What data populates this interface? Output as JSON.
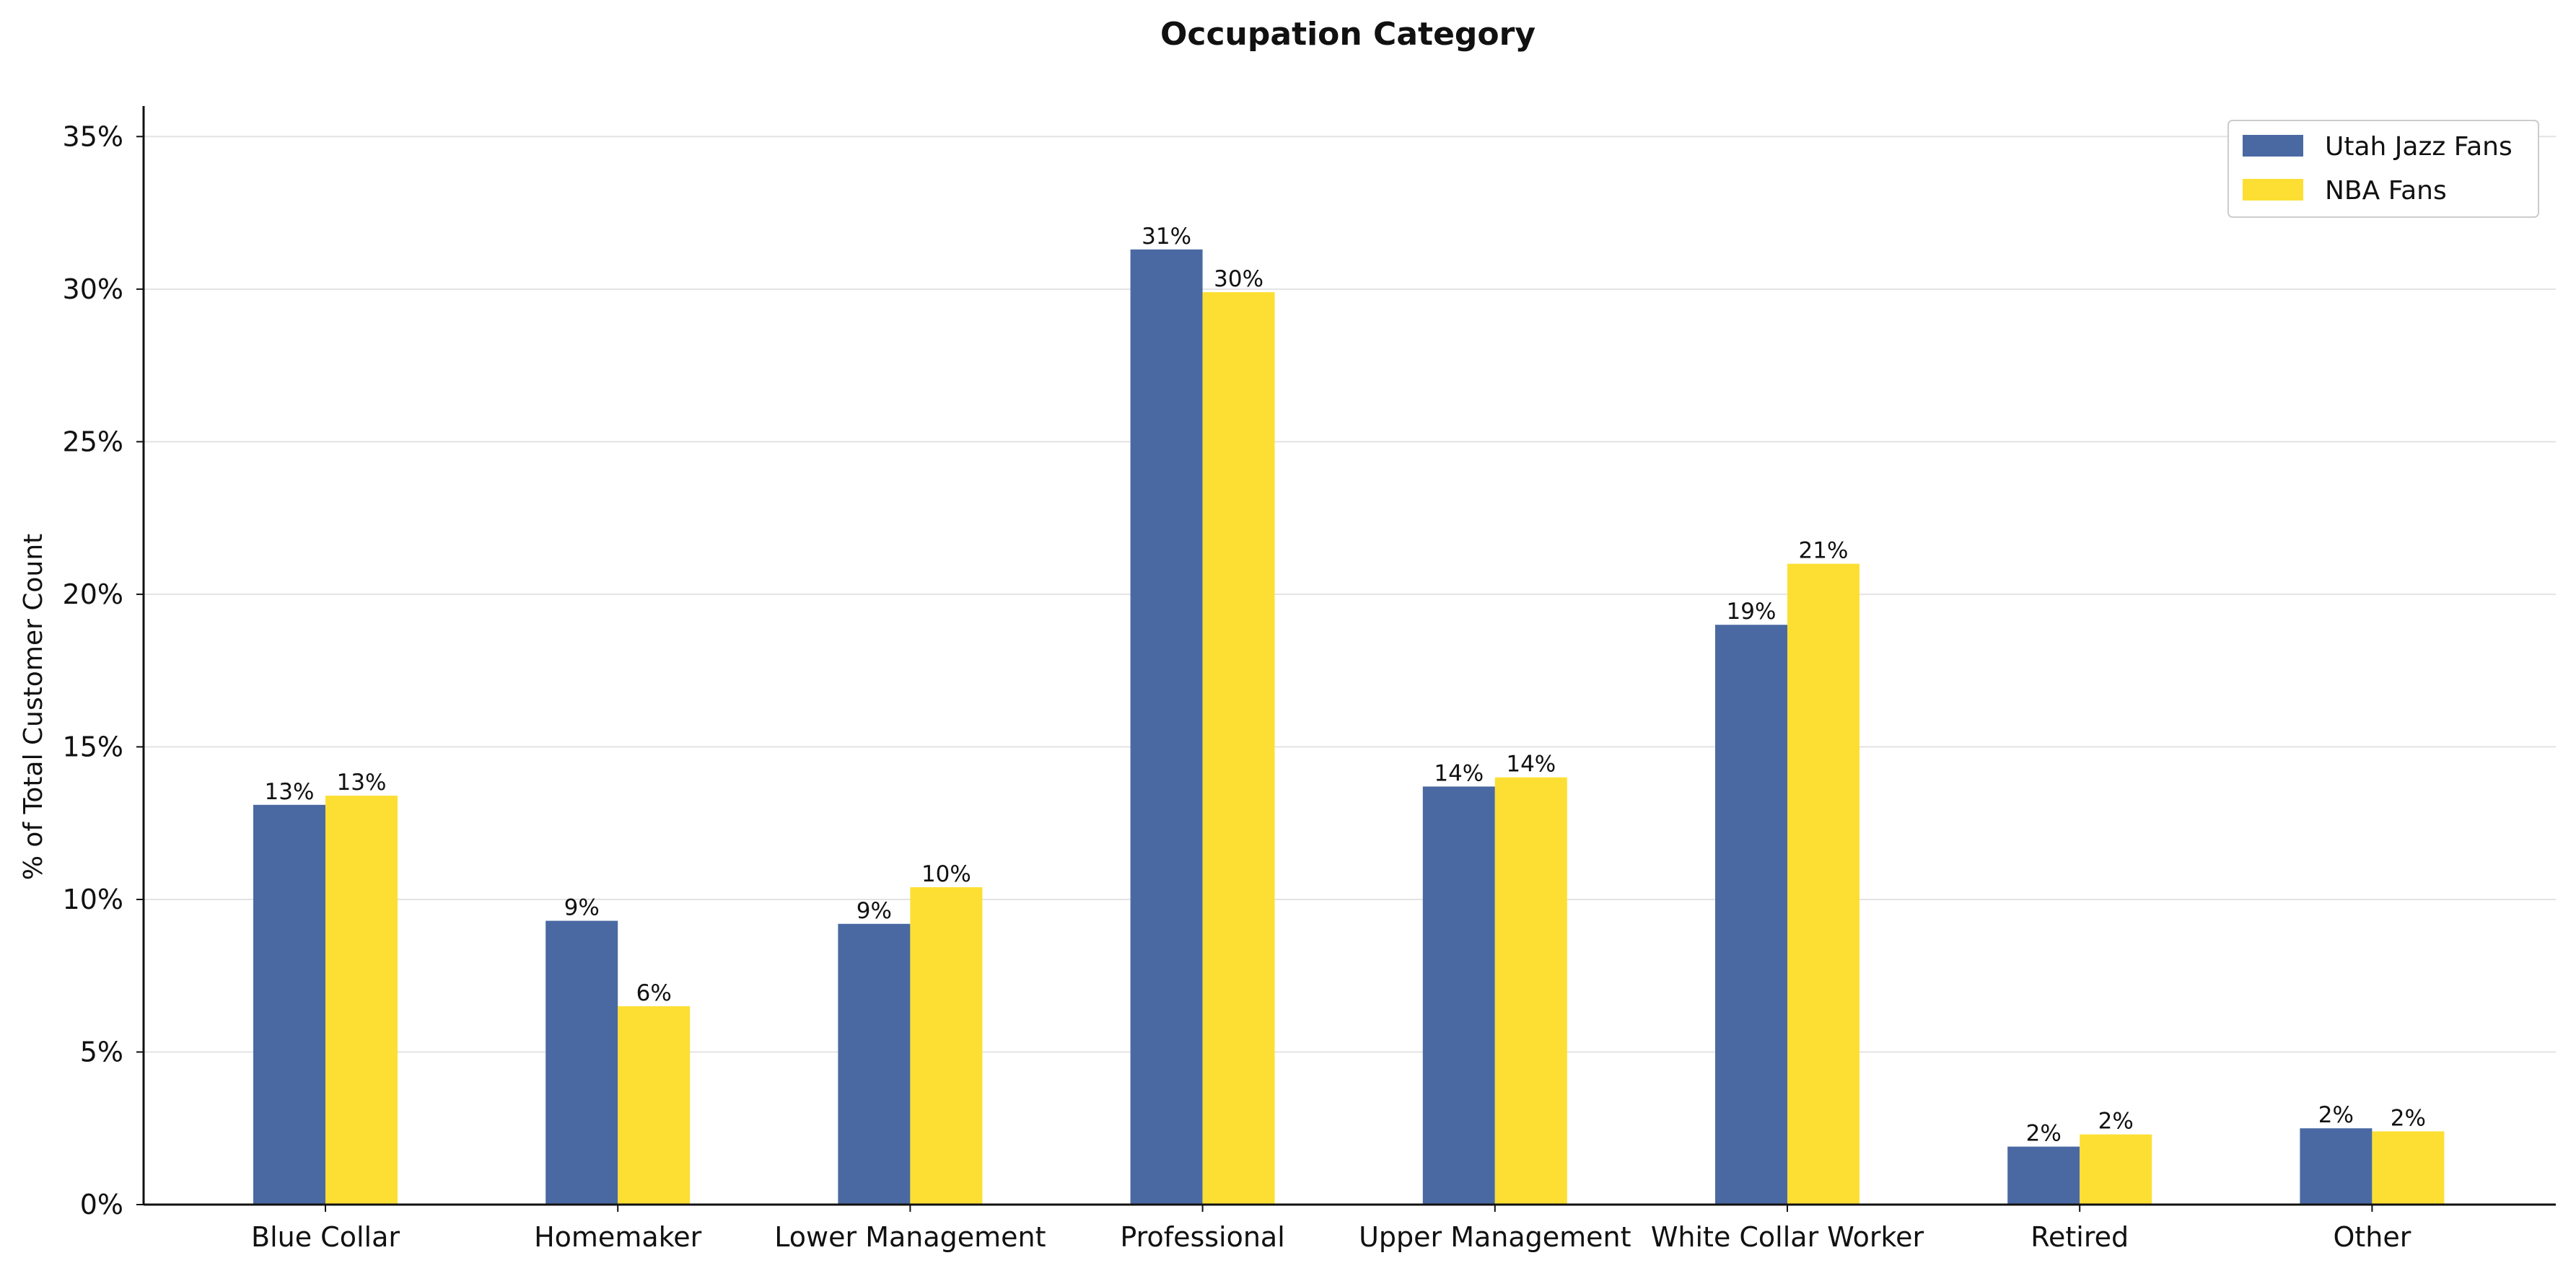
{
  "chart_data": {
    "type": "bar",
    "title": "Occupation Category",
    "xlabel": "",
    "ylabel": "% of Total Customer Count",
    "ylim": [
      0,
      36
    ],
    "yticks": [
      0,
      5,
      10,
      15,
      20,
      25,
      30,
      35
    ],
    "ytick_suffix": "%",
    "grid": true,
    "legend_position": "top-right",
    "categories": [
      "Blue Collar",
      "Homemaker",
      "Lower Management",
      "Professional",
      "Upper Management",
      "White Collar Worker",
      "Retired",
      "Other"
    ],
    "series": [
      {
        "name": "Utah Jazz Fans",
        "color": "#4a69a3",
        "values": [
          13.1,
          9.3,
          9.2,
          31.3,
          13.7,
          19.0,
          1.9,
          2.5
        ],
        "labels": [
          "13%",
          "9%",
          "9%",
          "31%",
          "14%",
          "19%",
          "2%",
          "2%"
        ]
      },
      {
        "name": "NBA Fans",
        "color": "#fddf33",
        "values": [
          13.4,
          6.5,
          10.4,
          29.9,
          14.0,
          21.0,
          2.3,
          2.4
        ],
        "labels": [
          "13%",
          "6%",
          "10%",
          "30%",
          "14%",
          "21%",
          "2%",
          "2%"
        ]
      }
    ]
  }
}
